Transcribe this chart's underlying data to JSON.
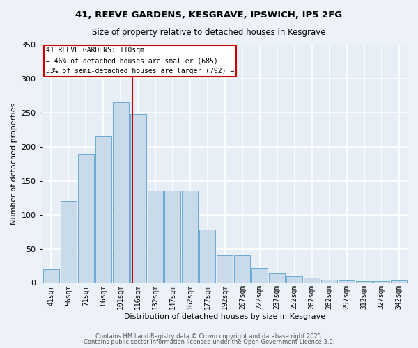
{
  "title": "41, REEVE GARDENS, KESGRAVE, IPSWICH, IP5 2FG",
  "subtitle": "Size of property relative to detached houses in Kesgrave",
  "xlabel": "Distribution of detached houses by size in Kesgrave",
  "ylabel": "Number of detached properties",
  "bar_color": "#c9daea",
  "bar_edge_color": "#6aaad4",
  "categories": [
    "41sqm",
    "56sqm",
    "71sqm",
    "86sqm",
    "101sqm",
    "116sqm",
    "132sqm",
    "147sqm",
    "162sqm",
    "177sqm",
    "192sqm",
    "207sqm",
    "222sqm",
    "237sqm",
    "252sqm",
    "267sqm",
    "282sqm",
    "297sqm",
    "312sqm",
    "327sqm",
    "342sqm"
  ],
  "values": [
    20,
    120,
    190,
    215,
    265,
    248,
    135,
    135,
    135,
    78,
    40,
    40,
    22,
    15,
    10,
    8,
    5,
    4,
    2,
    2,
    3
  ],
  "vline_x": 4.67,
  "vline_color": "#cc0000",
  "annotation_text": "41 REEVE GARDENS: 110sqm\n← 46% of detached houses are smaller (685)\n53% of semi-detached houses are larger (792) →",
  "ylim": [
    0,
    350
  ],
  "yticks": [
    0,
    50,
    100,
    150,
    200,
    250,
    300,
    350
  ],
  "plot_bg_color": "#e8eef5",
  "fig_bg_color": "#edf2f8",
  "grid_color": "#ffffff",
  "footer_line1": "Contains HM Land Registry data © Crown copyright and database right 2025.",
  "footer_line2": "Contains public sector information licensed under the Open Government Licence 3.0."
}
